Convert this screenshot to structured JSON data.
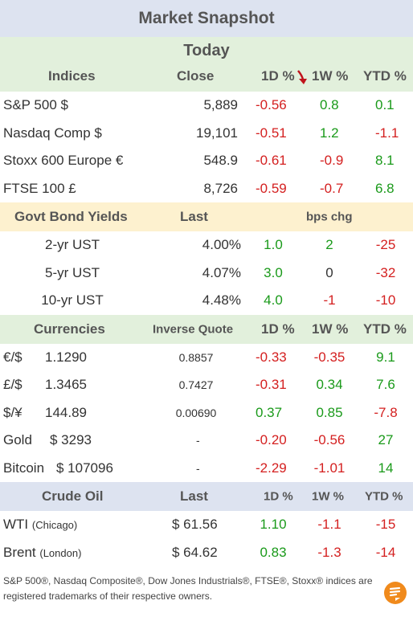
{
  "title": "Market Snapshot",
  "period": "Today",
  "indices": {
    "headers": {
      "name": "Indices",
      "close": "Close",
      "d1": "1D %",
      "w1": "1W %",
      "ytd": "YTD %"
    },
    "rows": [
      {
        "name": "S&P 500  $",
        "close": "5,889",
        "d1": "-0.56",
        "w1": "0.8",
        "ytd": "0.1"
      },
      {
        "name": "Nasdaq Comp  $",
        "close": "19,101",
        "d1": "-0.51",
        "w1": "1.2",
        "ytd": "-1.1"
      },
      {
        "name": "Stoxx 600 Europe  €",
        "close": "548.9",
        "d1": "-0.61",
        "w1": "-0.9",
        "ytd": "8.1"
      },
      {
        "name": "FTSE 100  £",
        "close": "8,726",
        "d1": "-0.59",
        "w1": "-0.7",
        "ytd": "6.8"
      }
    ]
  },
  "bonds": {
    "headers": {
      "name": "Govt Bond Yields",
      "last": "Last",
      "chg": "bps chg"
    },
    "rows": [
      {
        "name": "2-yr UST",
        "last": "4.00%",
        "d1": "1.0",
        "w1": "2",
        "ytd": "-25"
      },
      {
        "name": "5-yr UST",
        "last": "4.07%",
        "d1": "3.0",
        "w1": "0",
        "ytd": "-32"
      },
      {
        "name": "10-yr UST",
        "last": "4.48%",
        "d1": "4.0",
        "w1": "-1",
        "ytd": "-10"
      }
    ]
  },
  "currencies": {
    "headers": {
      "name": "Currencies",
      "inv": "Inverse Quote",
      "d1": "1D %",
      "w1": "1W %",
      "ytd": "YTD %"
    },
    "rows": [
      {
        "name": "€/$",
        "quote": "1.1290",
        "inv": "0.8857",
        "d1": "-0.33",
        "w1": "-0.35",
        "ytd": "9.1"
      },
      {
        "name": "£/$",
        "quote": "1.3465",
        "inv": "0.7427",
        "d1": "-0.31",
        "w1": "0.34",
        "ytd": "7.6"
      },
      {
        "name": "$/¥",
        "quote": "144.89",
        "inv": "0.00690",
        "d1": "0.37",
        "w1": "0.85",
        "ytd": "-7.8"
      },
      {
        "name": "Gold",
        "quote": "$ 3293",
        "inv": "-",
        "d1": "-0.20",
        "w1": "-0.56",
        "ytd": "27"
      },
      {
        "name": "Bitcoin",
        "quote": "$ 107096",
        "inv": "-",
        "d1": "-2.29",
        "w1": "-1.01",
        "ytd": "14"
      }
    ]
  },
  "oil": {
    "headers": {
      "name": "Crude Oil",
      "last": "Last",
      "d1": "1D %",
      "w1": "1W %",
      "ytd": "YTD %"
    },
    "rows": [
      {
        "name": "WTI",
        "sub": "(Chicago)",
        "last": "$ 61.56",
        "d1": "1.10",
        "w1": "-1.1",
        "ytd": "-15"
      },
      {
        "name": "Brent",
        "sub": "(London)",
        "last": "$ 64.62",
        "d1": "0.83",
        "w1": "-1.3",
        "ytd": "-14"
      }
    ]
  },
  "footer": "S&P 500®, Nasdaq Composite®, Dow Jones Industrials®, FTSE®, Stoxx® indices are registered trademarks of their respective owners.",
  "colors": {
    "positive": "#1a9a1a",
    "negative": "#d42020",
    "logo": "#f08a1c"
  },
  "icons": {
    "sort": "down-arrow-icon",
    "logo": "brand-logo-icon"
  }
}
